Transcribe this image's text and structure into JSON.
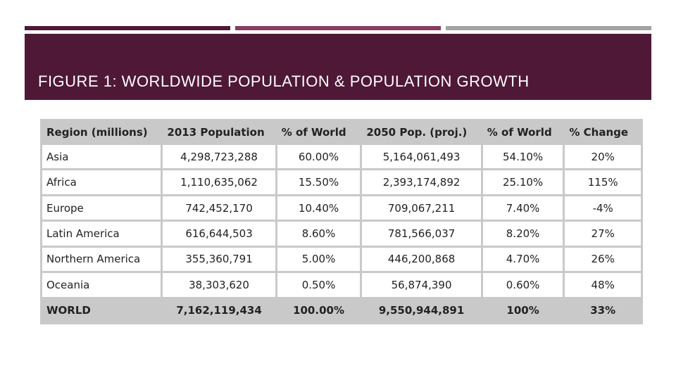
{
  "slide": {
    "title": "FIGURE 1: WORLDWIDE POPULATION & POPULATION GROWTH"
  },
  "table": {
    "headers": [
      "Region (millions)",
      "2013 Population",
      "% of World",
      "2050 Pop. (proj.)",
      "% of World",
      "% Change"
    ],
    "rows": [
      [
        "Asia",
        "4,298,723,288",
        "60.00%",
        "5,164,061,493",
        "54.10%",
        "20%"
      ],
      [
        "Africa",
        "1,110,635,062",
        "15.50%",
        "2,393,174,892",
        "25.10%",
        "115%"
      ],
      [
        "Europe",
        "742,452,170",
        "10.40%",
        "709,067,211",
        "7.40%",
        "-4%"
      ],
      [
        "Latin America",
        "616,644,503",
        "8.60%",
        "781,566,037",
        "8.20%",
        "27%"
      ],
      [
        "Northern America",
        "355,360,791",
        "5.00%",
        "446,200,868",
        "4.70%",
        "26%"
      ],
      [
        "Oceania",
        "38,303,620",
        "0.50%",
        "56,874,390",
        "0.60%",
        "48%"
      ],
      [
        "WORLD",
        "7,162,119,434",
        "100.00%",
        "9,550,944,891",
        "100%",
        "33%"
      ]
    ]
  },
  "colors": {
    "title_band": "#4f1836",
    "accent_bar_1": "#4f1836",
    "accent_bar_2": "#8a3a63",
    "accent_bar_3": "#a3a3a3",
    "table_header": "#c9c9c9"
  }
}
